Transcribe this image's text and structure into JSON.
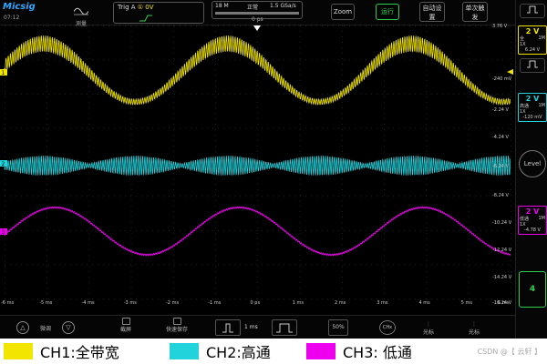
{
  "header": {
    "brand": "Micsig",
    "clock": "07:12",
    "measure_label": "测量",
    "trig_label": "Trig A",
    "trig_channel": "①",
    "trig_level": "0V",
    "memory": "18 M",
    "mode": "正常",
    "sample_rate": "1.5 GSa/s",
    "time_offset": "0 ps",
    "zoom_label": "Zoom",
    "run_label": "运行",
    "auto_label": "自动设置",
    "single_label": "单次触发"
  },
  "channels": [
    {
      "id": "1",
      "volts": "2 V",
      "coupling": "全",
      "probe": "1X",
      "impedance": "1M",
      "offset": "6.24 V",
      "color": "#f2e600"
    },
    {
      "id": "2",
      "volts": "2 V",
      "coupling": "高通",
      "probe": "1X",
      "impedance": "1M",
      "offset": "-120 mV",
      "color": "#22d3dc"
    },
    {
      "id": "3",
      "volts": "2 V",
      "coupling": "低通",
      "probe": "1X",
      "impedance": "1M",
      "offset": "-4.78 V",
      "color": "#ee00ee"
    }
  ],
  "right": {
    "level_label": "Level",
    "ch4_label": "4"
  },
  "grid": {
    "time_ticks": [
      "-6 ms",
      "-5 ms",
      "-4 ms",
      "-3 ms",
      "-2 ms",
      "-1 ms",
      "0 ps",
      "1 ms",
      "2 ms",
      "3 ms",
      "4 ms",
      "5 ms",
      "6 ms"
    ],
    "volt_ticks": [
      "3.76 V",
      "-240 mV",
      "-2.24 V",
      "-4.24 V",
      "-6.24 V",
      "-8.24 V",
      "-10.24 V",
      "-12.24 V",
      "-14.24 V",
      "-16.24 V"
    ]
  },
  "bottom": {
    "fine_label": "微调",
    "screenshot_label": "截屏",
    "quicksave_label": "快速保存",
    "timebase": "1 ms",
    "percent": "50%",
    "chx_label": "CHx",
    "cursor_label": "光标",
    "cursor_label2": "光标"
  },
  "legend": {
    "ch1": "CH1:全带宽",
    "ch2": "CH2:高通",
    "ch3": "CH3:  低通",
    "watermark": "CSDN @【 云轩 】"
  }
}
